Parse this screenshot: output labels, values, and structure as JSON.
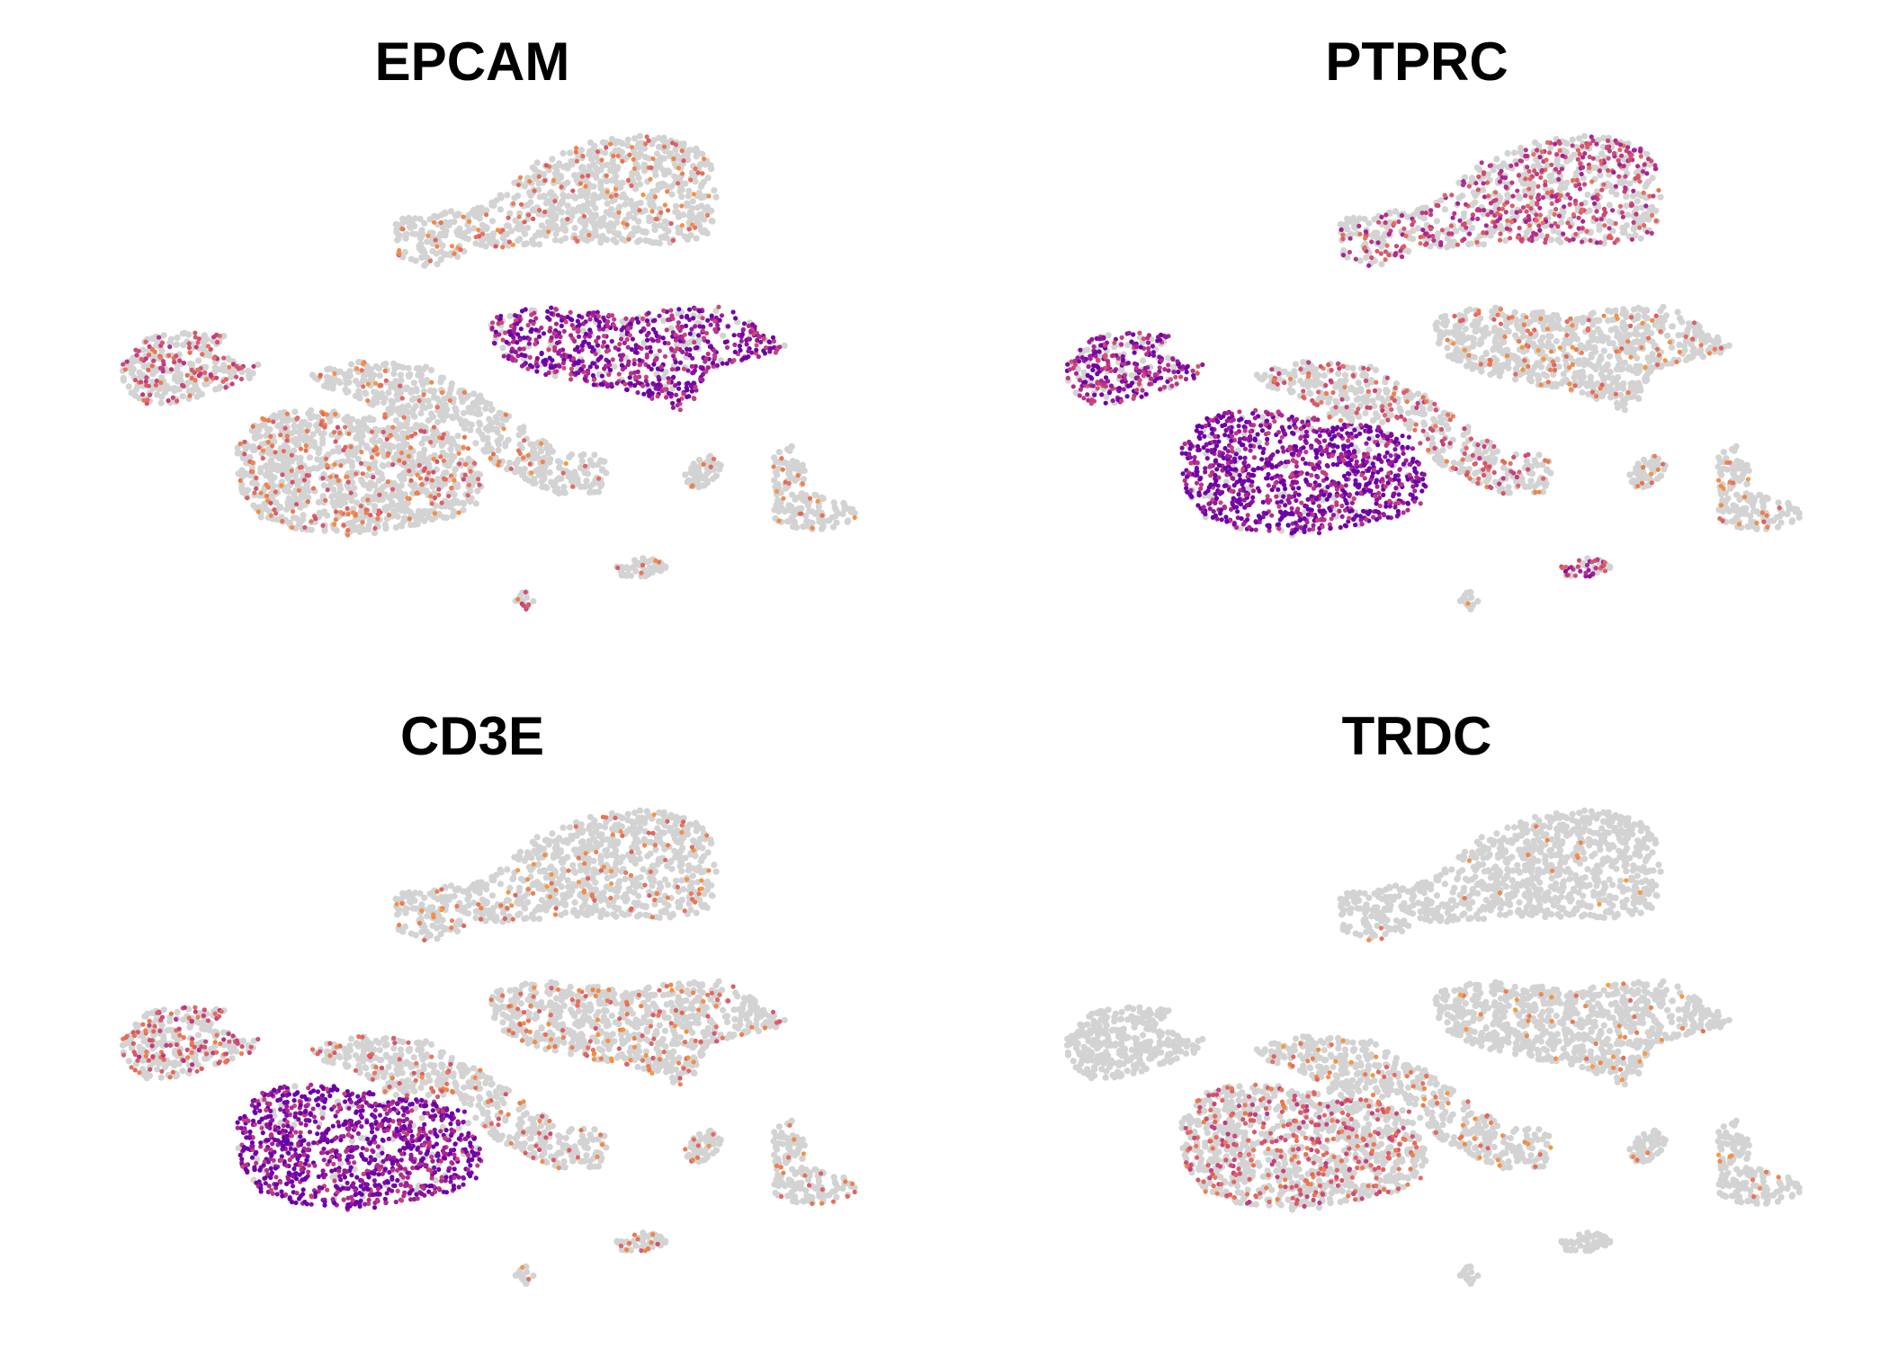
{
  "figure": {
    "type": "feature-plot-grid",
    "colors": {
      "background": "#ffffff",
      "no_expression": "#d3d3d3",
      "low": "#fca636",
      "mid": "#e16462",
      "mid_high": "#b12a90",
      "high": "#6a00a8"
    }
  },
  "chart_data": [
    {
      "type": "scatter",
      "title": "EPCAM",
      "xlabel": "",
      "ylabel": "",
      "grid": false,
      "legend": "none",
      "expression": {
        "top": 0.15,
        "middle": 0.85,
        "small_left": 0.35,
        "center_big": 0.2,
        "center_arm": 0.1,
        "right_group": 0.12,
        "tiny_1": 0.18,
        "tiny_2": 0.3
      }
    },
    {
      "type": "scatter",
      "title": "PTPRC",
      "xlabel": "",
      "ylabel": "",
      "grid": false,
      "legend": "none",
      "expression": {
        "top": 0.45,
        "middle": 0.12,
        "small_left": 0.75,
        "center_big": 0.92,
        "center_arm": 0.3,
        "right_group": 0.12,
        "tiny_1": 0.55,
        "tiny_2": 0.05
      }
    },
    {
      "type": "scatter",
      "title": "CD3E",
      "xlabel": "",
      "ylabel": "",
      "grid": false,
      "legend": "none",
      "expression": {
        "top": 0.1,
        "middle": 0.15,
        "small_left": 0.35,
        "center_big": 0.92,
        "center_arm": 0.2,
        "right_group": 0.15,
        "tiny_1": 0.2,
        "tiny_2": 0.08
      }
    },
    {
      "type": "scatter",
      "title": "TRDC",
      "xlabel": "",
      "ylabel": "",
      "grid": false,
      "legend": "none",
      "expression": {
        "top": 0.02,
        "middle": 0.05,
        "small_left": 0.0,
        "center_big": 0.3,
        "center_arm": 0.1,
        "right_group": 0.04,
        "tiny_1": 0.05,
        "tiny_2": 0.0
      }
    }
  ]
}
